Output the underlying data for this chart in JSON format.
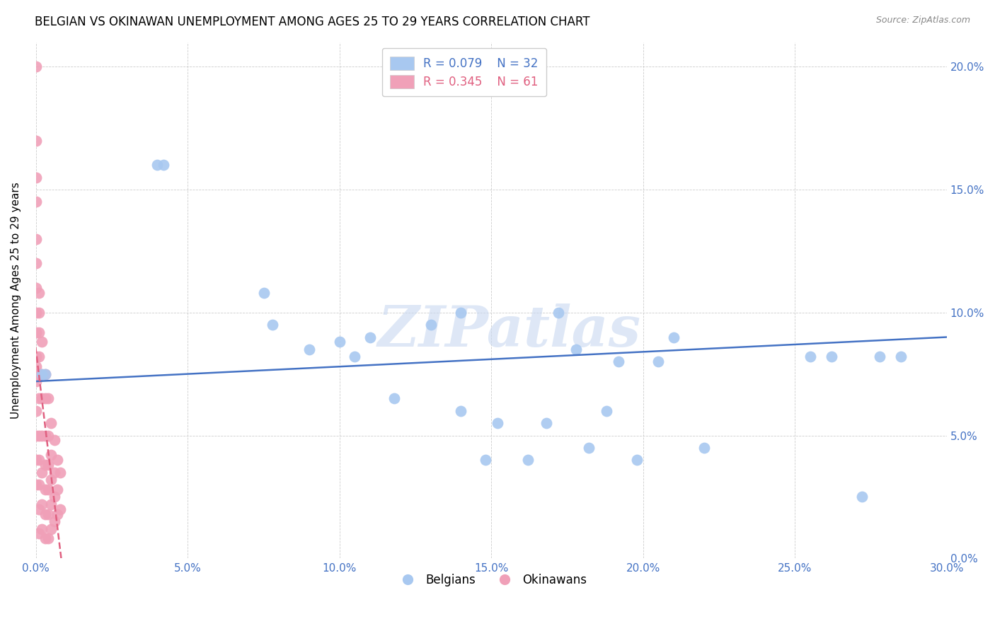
{
  "title": "BELGIAN VS OKINAWAN UNEMPLOYMENT AMONG AGES 25 TO 29 YEARS CORRELATION CHART",
  "source": "Source: ZipAtlas.com",
  "ylabel": "Unemployment Among Ages 25 to 29 years",
  "xlim": [
    0.0,
    0.3
  ],
  "ylim": [
    0.0,
    0.21
  ],
  "xticks": [
    0.0,
    0.05,
    0.1,
    0.15,
    0.2,
    0.25,
    0.3
  ],
  "yticks": [
    0.0,
    0.05,
    0.1,
    0.15,
    0.2
  ],
  "ytick_labels_right": [
    "0.0%",
    "5.0%",
    "10.0%",
    "15.0%",
    "20.0%"
  ],
  "xtick_labels": [
    "0.0%",
    "",
    "5.0%",
    "",
    "10.0%",
    "",
    "15.0%",
    "",
    "20.0%",
    "",
    "25.0%",
    "",
    "30.0%"
  ],
  "belgian_color": "#a8c8f0",
  "okinawan_color": "#f0a0b8",
  "trend_belgian_color": "#4472c4",
  "trend_okinawan_color": "#e06080",
  "axis_color": "#4472c4",
  "background_color": "#ffffff",
  "watermark_text": "ZIPatlas",
  "legend_R_belgian": "R = 0.079",
  "legend_N_belgian": "N = 32",
  "legend_R_okinawan": "R = 0.345",
  "legend_N_okinawan": "N = 61",
  "belgian_x": [
    0.002,
    0.003,
    0.04,
    0.042,
    0.075,
    0.078,
    0.09,
    0.1,
    0.105,
    0.11,
    0.118,
    0.13,
    0.14,
    0.148,
    0.152,
    0.162,
    0.168,
    0.172,
    0.178,
    0.182,
    0.188,
    0.192,
    0.198,
    0.205,
    0.21,
    0.22,
    0.14,
    0.255,
    0.262,
    0.272,
    0.278,
    0.285
  ],
  "belgian_y": [
    0.075,
    0.075,
    0.16,
    0.16,
    0.108,
    0.095,
    0.085,
    0.088,
    0.082,
    0.09,
    0.065,
    0.095,
    0.06,
    0.04,
    0.055,
    0.04,
    0.055,
    0.1,
    0.085,
    0.045,
    0.06,
    0.08,
    0.04,
    0.08,
    0.09,
    0.045,
    0.1,
    0.082,
    0.082,
    0.025,
    0.082,
    0.082
  ],
  "okinawan_x": [
    0.0,
    0.0,
    0.0,
    0.0,
    0.0,
    0.0,
    0.0,
    0.0,
    0.0,
    0.0,
    0.0,
    0.0,
    0.0,
    0.0,
    0.0,
    0.0,
    0.001,
    0.001,
    0.001,
    0.001,
    0.001,
    0.001,
    0.001,
    0.001,
    0.001,
    0.001,
    0.001,
    0.002,
    0.002,
    0.002,
    0.002,
    0.002,
    0.002,
    0.002,
    0.003,
    0.003,
    0.003,
    0.003,
    0.003,
    0.003,
    0.003,
    0.004,
    0.004,
    0.004,
    0.004,
    0.004,
    0.004,
    0.005,
    0.005,
    0.005,
    0.005,
    0.005,
    0.006,
    0.006,
    0.006,
    0.006,
    0.007,
    0.007,
    0.007,
    0.008,
    0.008
  ],
  "okinawan_y": [
    0.2,
    0.17,
    0.155,
    0.145,
    0.13,
    0.12,
    0.11,
    0.1,
    0.092,
    0.082,
    0.078,
    0.072,
    0.06,
    0.05,
    0.04,
    0.03,
    0.108,
    0.1,
    0.092,
    0.082,
    0.075,
    0.065,
    0.05,
    0.04,
    0.03,
    0.02,
    0.01,
    0.088,
    0.075,
    0.065,
    0.05,
    0.035,
    0.022,
    0.012,
    0.075,
    0.065,
    0.05,
    0.038,
    0.028,
    0.018,
    0.008,
    0.065,
    0.05,
    0.038,
    0.028,
    0.018,
    0.008,
    0.055,
    0.042,
    0.032,
    0.022,
    0.012,
    0.048,
    0.035,
    0.025,
    0.015,
    0.04,
    0.028,
    0.018,
    0.035,
    0.02
  ],
  "belgian_trend_x": [
    0.0,
    0.3
  ],
  "belgian_trend_y_start": 0.072,
  "belgian_trend_y_end": 0.09,
  "okinawan_trend_x_start": 0.001,
  "okinawan_trend_y_start": 0.005,
  "okinawan_trend_slope": 18.0
}
